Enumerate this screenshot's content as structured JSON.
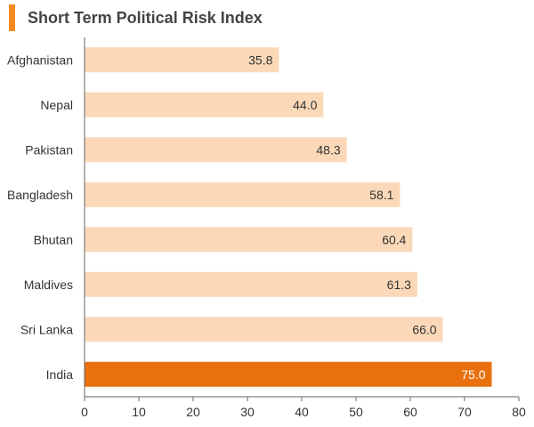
{
  "chart_data": {
    "type": "bar",
    "orientation": "horizontal",
    "title": "Short Term Political Risk Index",
    "categories": [
      "Afghanistan",
      "Nepal",
      "Pakistan",
      "Bangladesh",
      "Bhutan",
      "Maldives",
      "Sri Lanka",
      "India"
    ],
    "values": [
      35.8,
      44.0,
      48.3,
      58.1,
      60.4,
      61.3,
      66.0,
      75.0
    ],
    "value_labels": [
      "35.8",
      "44.0",
      "48.3",
      "58.1",
      "60.4",
      "61.3",
      "66.0",
      "75.0"
    ],
    "highlight": "India",
    "xlim": [
      0,
      80
    ],
    "xticks": [
      "0",
      "10",
      "20",
      "30",
      "40",
      "50",
      "60",
      "70",
      "80"
    ],
    "xlabel": "",
    "ylabel": "",
    "grid": false,
    "colors": {
      "bar": "#fbd9b8",
      "highlight_bar": "#e8700f",
      "accent": "#f28a1f",
      "axis": "#666666"
    }
  }
}
